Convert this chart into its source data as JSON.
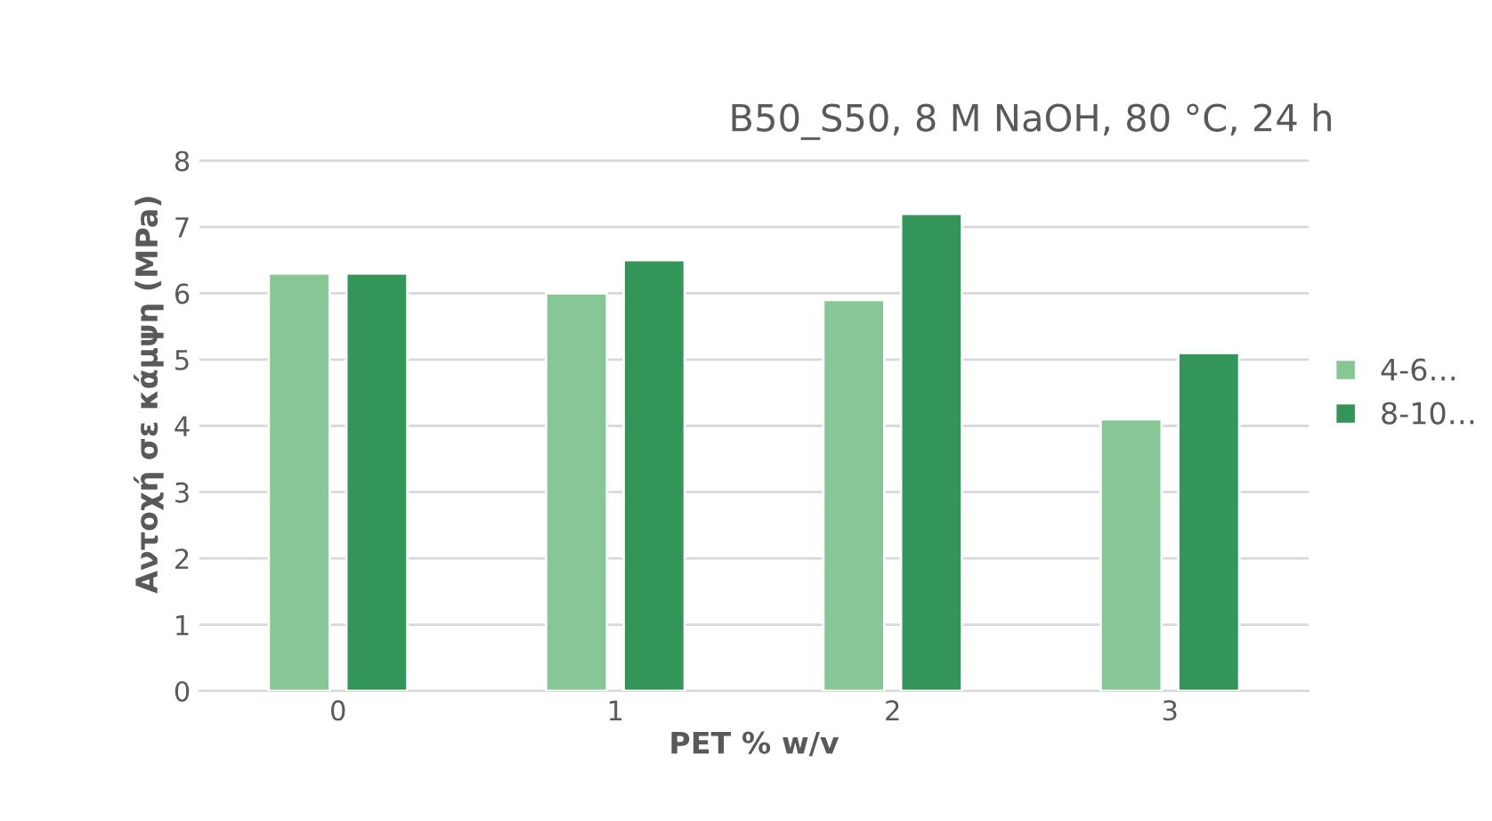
{
  "chart_data": {
    "type": "bar",
    "title": "B50_S50, 8 M NaOH, 80 °C, 24 h",
    "xlabel": "PET % w/v",
    "ylabel": "Αντοχή σε κάμψη (MPa)",
    "categories": [
      "0",
      "1",
      "2",
      "3"
    ],
    "series": [
      {
        "name": "4-6…",
        "color": "#86c795",
        "values": [
          6.3,
          6.0,
          5.9,
          4.1
        ]
      },
      {
        "name": "8-10…",
        "color": "#349558",
        "values": [
          6.3,
          6.5,
          7.2,
          5.1
        ]
      }
    ],
    "ylim": [
      0,
      8
    ],
    "yticks": [
      0,
      1,
      2,
      3,
      4,
      5,
      6,
      7,
      8
    ],
    "grid": "y",
    "legend": "right"
  }
}
